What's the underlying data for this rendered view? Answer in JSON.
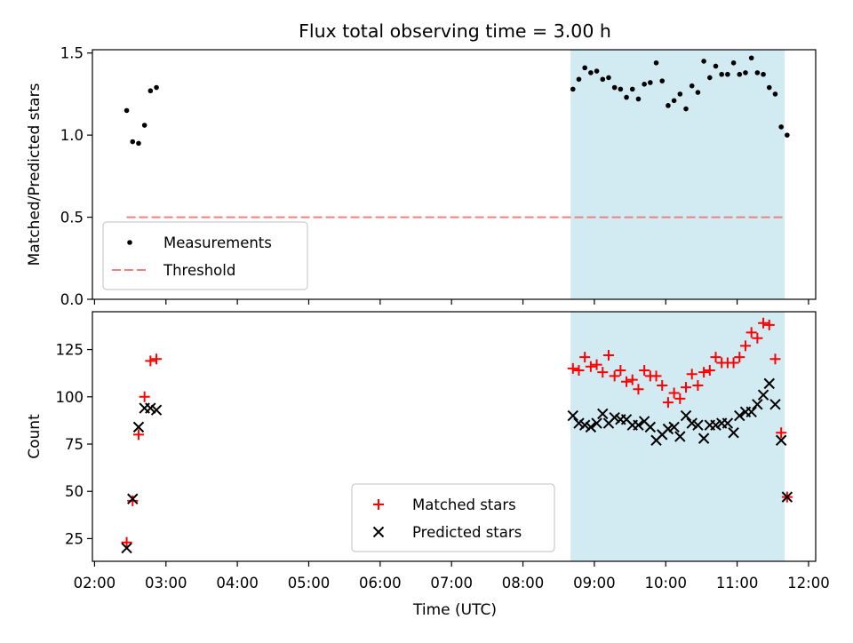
{
  "chart_data": {
    "title": "Flux total observing time = 3.00 h",
    "xlabel": "Time (UTC)",
    "x_ticks": [
      "02:00",
      "03:00",
      "04:00",
      "05:00",
      "06:00",
      "07:00",
      "08:00",
      "09:00",
      "10:00",
      "11:00",
      "12:00"
    ],
    "shaded_window": {
      "start": "08:40",
      "end": "11:40",
      "color": "#add8e6"
    },
    "panels": [
      {
        "type": "scatter",
        "ylabel": "Matched/Predicted stars",
        "ylim": [
          0,
          1.52
        ],
        "y_ticks": [
          "0.0",
          "0.5",
          "1.0",
          "1.5"
        ],
        "legend_position": "lower-left",
        "threshold": {
          "name": "Threshold",
          "value": 0.5,
          "x_start": "02:27",
          "x_end": "11:40",
          "color": "#f08080",
          "style": "dashed"
        },
        "series": [
          {
            "name": "Measurements",
            "marker": "dot",
            "color": "#000000",
            "points": [
              [
                "02:27",
                1.15
              ],
              [
                "02:32",
                0.96
              ],
              [
                "02:37",
                0.95
              ],
              [
                "02:42",
                1.06
              ],
              [
                "02:47",
                1.27
              ],
              [
                "02:52",
                1.29
              ],
              [
                "08:42",
                1.28
              ],
              [
                "08:47",
                1.34
              ],
              [
                "08:52",
                1.41
              ],
              [
                "08:57",
                1.38
              ],
              [
                "09:02",
                1.39
              ],
              [
                "09:07",
                1.34
              ],
              [
                "09:12",
                1.35
              ],
              [
                "09:17",
                1.29
              ],
              [
                "09:22",
                1.28
              ],
              [
                "09:27",
                1.23
              ],
              [
                "09:32",
                1.28
              ],
              [
                "09:37",
                1.22
              ],
              [
                "09:42",
                1.31
              ],
              [
                "09:47",
                1.32
              ],
              [
                "09:52",
                1.44
              ],
              [
                "09:57",
                1.33
              ],
              [
                "10:02",
                1.18
              ],
              [
                "10:07",
                1.21
              ],
              [
                "10:12",
                1.25
              ],
              [
                "10:17",
                1.16
              ],
              [
                "10:22",
                1.3
              ],
              [
                "10:27",
                1.26
              ],
              [
                "10:32",
                1.45
              ],
              [
                "10:37",
                1.35
              ],
              [
                "10:42",
                1.42
              ],
              [
                "10:47",
                1.37
              ],
              [
                "10:52",
                1.37
              ],
              [
                "10:57",
                1.44
              ],
              [
                "11:02",
                1.37
              ],
              [
                "11:07",
                1.38
              ],
              [
                "11:12",
                1.47
              ],
              [
                "11:17",
                1.38
              ],
              [
                "11:22",
                1.37
              ],
              [
                "11:27",
                1.29
              ],
              [
                "11:32",
                1.25
              ],
              [
                "11:37",
                1.05
              ],
              [
                "11:42",
                1.0
              ]
            ]
          }
        ]
      },
      {
        "type": "scatter",
        "ylabel": "Count",
        "ylim": [
          13,
          145
        ],
        "y_ticks": [
          "25",
          "50",
          "75",
          "100",
          "125"
        ],
        "legend_position": "lower-center",
        "series": [
          {
            "name": "Matched stars",
            "marker": "plus",
            "color": "#ff0000",
            "points": [
              [
                "02:27",
                23
              ],
              [
                "02:32",
                45
              ],
              [
                "02:37",
                80
              ],
              [
                "02:42",
                100
              ],
              [
                "02:47",
                119
              ],
              [
                "02:52",
                120
              ],
              [
                "08:42",
                115
              ],
              [
                "08:47",
                114
              ],
              [
                "08:52",
                121
              ],
              [
                "08:57",
                116
              ],
              [
                "09:02",
                117
              ],
              [
                "09:07",
                113
              ],
              [
                "09:12",
                122
              ],
              [
                "09:17",
                111
              ],
              [
                "09:22",
                114
              ],
              [
                "09:27",
                108
              ],
              [
                "09:32",
                109
              ],
              [
                "09:37",
                104
              ],
              [
                "09:42",
                114
              ],
              [
                "09:47",
                111
              ],
              [
                "09:52",
                111
              ],
              [
                "09:57",
                106
              ],
              [
                "10:02",
                97
              ],
              [
                "10:07",
                102
              ],
              [
                "10:12",
                99
              ],
              [
                "10:17",
                105
              ],
              [
                "10:22",
                112
              ],
              [
                "10:27",
                106
              ],
              [
                "10:32",
                113
              ],
              [
                "10:37",
                114
              ],
              [
                "10:42",
                121
              ],
              [
                "10:47",
                118
              ],
              [
                "10:52",
                118
              ],
              [
                "10:57",
                118
              ],
              [
                "11:02",
                121
              ],
              [
                "11:07",
                127
              ],
              [
                "11:12",
                134
              ],
              [
                "11:17",
                131
              ],
              [
                "11:22",
                139
              ],
              [
                "11:27",
                138
              ],
              [
                "11:32",
                120
              ],
              [
                "11:37",
                81
              ],
              [
                "11:42",
                47
              ]
            ]
          },
          {
            "name": "Predicted stars",
            "marker": "x",
            "color": "#000000",
            "points": [
              [
                "02:27",
                20
              ],
              [
                "02:32",
                46
              ],
              [
                "02:37",
                84
              ],
              [
                "02:42",
                94
              ],
              [
                "02:47",
                94
              ],
              [
                "02:52",
                93
              ],
              [
                "08:42",
                90
              ],
              [
                "08:47",
                86
              ],
              [
                "08:52",
                85
              ],
              [
                "08:57",
                84
              ],
              [
                "09:02",
                86
              ],
              [
                "09:07",
                91
              ],
              [
                "09:12",
                86
              ],
              [
                "09:17",
                89
              ],
              [
                "09:22",
                88
              ],
              [
                "09:27",
                88
              ],
              [
                "09:32",
                85
              ],
              [
                "09:37",
                85
              ],
              [
                "09:42",
                87
              ],
              [
                "09:47",
                84
              ],
              [
                "09:52",
                77
              ],
              [
                "09:57",
                80
              ],
              [
                "10:02",
                83
              ],
              [
                "10:07",
                84
              ],
              [
                "10:12",
                79
              ],
              [
                "10:17",
                90
              ],
              [
                "10:22",
                86
              ],
              [
                "10:27",
                85
              ],
              [
                "10:32",
                78
              ],
              [
                "10:37",
                85
              ],
              [
                "10:42",
                85
              ],
              [
                "10:47",
                86
              ],
              [
                "10:52",
                86
              ],
              [
                "10:57",
                81
              ],
              [
                "11:02",
                90
              ],
              [
                "11:07",
                92
              ],
              [
                "11:12",
                92
              ],
              [
                "11:17",
                96
              ],
              [
                "11:22",
                101
              ],
              [
                "11:27",
                107
              ],
              [
                "11:32",
                96
              ],
              [
                "11:37",
                77
              ],
              [
                "11:42",
                47
              ]
            ]
          }
        ]
      }
    ]
  }
}
